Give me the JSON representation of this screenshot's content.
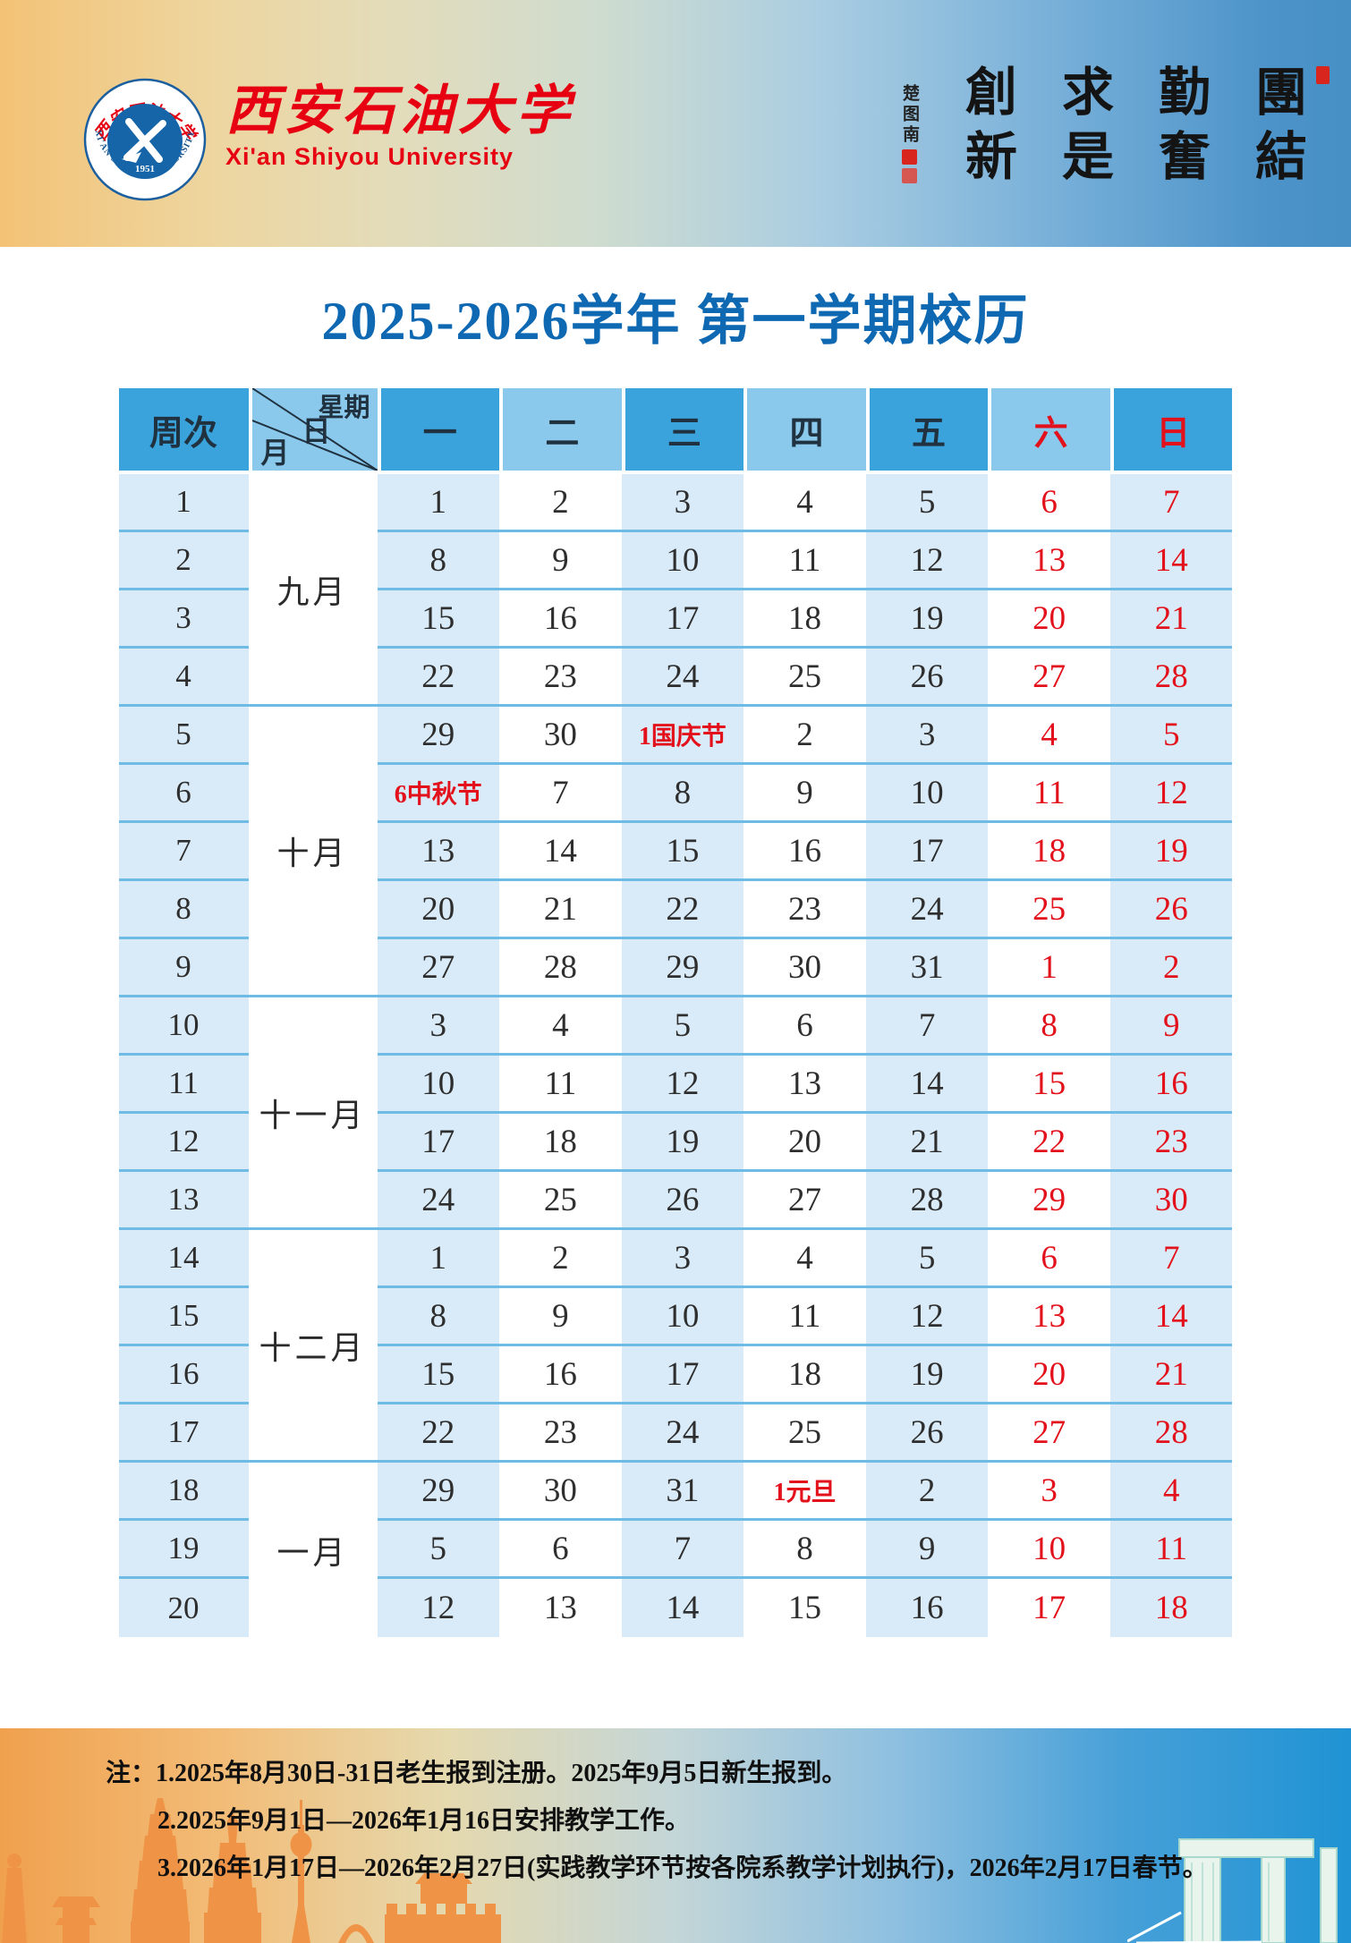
{
  "brand": {
    "name_zh": "西安石油大学",
    "name_en": "Xi'an Shiyou University",
    "logo_ring_zh": "西安石油大学",
    "logo_ring_en": "XI'AN SHIYOU UNIVERSITY",
    "logo_year": "1951"
  },
  "motto": {
    "columns_left_to_right": [
      "創新",
      "求是",
      "勤奮",
      "團結"
    ],
    "reading_order": "團結 勤奮 求是 創新",
    "signature": "楚图南"
  },
  "title": "2025-2026学年 第一学期校历",
  "calendar": {
    "week_header": "周次",
    "corner": {
      "top": "星期",
      "mid": "日",
      "bottom": "月"
    },
    "weekdays": [
      {
        "label": "一",
        "red": false
      },
      {
        "label": "二",
        "red": false
      },
      {
        "label": "三",
        "red": false
      },
      {
        "label": "四",
        "red": false
      },
      {
        "label": "五",
        "red": false
      },
      {
        "label": "六",
        "red": true
      },
      {
        "label": "日",
        "red": true
      }
    ],
    "months": [
      {
        "label": "九月",
        "from": 1,
        "to": 4
      },
      {
        "label": "十月",
        "from": 5,
        "to": 9
      },
      {
        "label": "十一月",
        "from": 10,
        "to": 13
      },
      {
        "label": "十二月",
        "from": 14,
        "to": 17
      },
      {
        "label": "一月",
        "from": 18,
        "to": 20
      }
    ],
    "weeks": [
      {
        "no": "1",
        "days": [
          {
            "t": "1"
          },
          {
            "t": "2"
          },
          {
            "t": "3"
          },
          {
            "t": "4"
          },
          {
            "t": "5"
          },
          {
            "t": "6",
            "red": true
          },
          {
            "t": "7",
            "red": true
          }
        ]
      },
      {
        "no": "2",
        "days": [
          {
            "t": "8"
          },
          {
            "t": "9"
          },
          {
            "t": "10"
          },
          {
            "t": "11"
          },
          {
            "t": "12"
          },
          {
            "t": "13",
            "red": true
          },
          {
            "t": "14",
            "red": true
          }
        ]
      },
      {
        "no": "3",
        "days": [
          {
            "t": "15"
          },
          {
            "t": "16"
          },
          {
            "t": "17"
          },
          {
            "t": "18"
          },
          {
            "t": "19"
          },
          {
            "t": "20",
            "red": true
          },
          {
            "t": "21",
            "red": true
          }
        ]
      },
      {
        "no": "4",
        "days": [
          {
            "t": "22"
          },
          {
            "t": "23"
          },
          {
            "t": "24"
          },
          {
            "t": "25"
          },
          {
            "t": "26"
          },
          {
            "t": "27",
            "red": true
          },
          {
            "t": "28",
            "red": true
          }
        ]
      },
      {
        "no": "5",
        "days": [
          {
            "t": "29"
          },
          {
            "t": "30"
          },
          {
            "t": "1国庆节",
            "red": true,
            "holiday": true
          },
          {
            "t": "2"
          },
          {
            "t": "3"
          },
          {
            "t": "4",
            "red": true
          },
          {
            "t": "5",
            "red": true
          }
        ]
      },
      {
        "no": "6",
        "days": [
          {
            "t": "6中秋节",
            "red": true,
            "holiday": true
          },
          {
            "t": "7"
          },
          {
            "t": "8"
          },
          {
            "t": "9"
          },
          {
            "t": "10"
          },
          {
            "t": "11",
            "red": true
          },
          {
            "t": "12",
            "red": true
          }
        ]
      },
      {
        "no": "7",
        "days": [
          {
            "t": "13"
          },
          {
            "t": "14"
          },
          {
            "t": "15"
          },
          {
            "t": "16"
          },
          {
            "t": "17"
          },
          {
            "t": "18",
            "red": true
          },
          {
            "t": "19",
            "red": true
          }
        ]
      },
      {
        "no": "8",
        "days": [
          {
            "t": "20"
          },
          {
            "t": "21"
          },
          {
            "t": "22"
          },
          {
            "t": "23"
          },
          {
            "t": "24"
          },
          {
            "t": "25",
            "red": true
          },
          {
            "t": "26",
            "red": true
          }
        ]
      },
      {
        "no": "9",
        "days": [
          {
            "t": "27"
          },
          {
            "t": "28"
          },
          {
            "t": "29"
          },
          {
            "t": "30"
          },
          {
            "t": "31"
          },
          {
            "t": "1",
            "red": true
          },
          {
            "t": "2",
            "red": true
          }
        ]
      },
      {
        "no": "10",
        "days": [
          {
            "t": "3"
          },
          {
            "t": "4"
          },
          {
            "t": "5"
          },
          {
            "t": "6"
          },
          {
            "t": "7"
          },
          {
            "t": "8",
            "red": true
          },
          {
            "t": "9",
            "red": true
          }
        ]
      },
      {
        "no": "11",
        "days": [
          {
            "t": "10"
          },
          {
            "t": "11"
          },
          {
            "t": "12"
          },
          {
            "t": "13"
          },
          {
            "t": "14"
          },
          {
            "t": "15",
            "red": true
          },
          {
            "t": "16",
            "red": true
          }
        ]
      },
      {
        "no": "12",
        "days": [
          {
            "t": "17"
          },
          {
            "t": "18"
          },
          {
            "t": "19"
          },
          {
            "t": "20"
          },
          {
            "t": "21"
          },
          {
            "t": "22",
            "red": true
          },
          {
            "t": "23",
            "red": true
          }
        ]
      },
      {
        "no": "13",
        "days": [
          {
            "t": "24"
          },
          {
            "t": "25"
          },
          {
            "t": "26"
          },
          {
            "t": "27"
          },
          {
            "t": "28"
          },
          {
            "t": "29",
            "red": true
          },
          {
            "t": "30",
            "red": true
          }
        ]
      },
      {
        "no": "14",
        "days": [
          {
            "t": "1"
          },
          {
            "t": "2"
          },
          {
            "t": "3"
          },
          {
            "t": "4"
          },
          {
            "t": "5"
          },
          {
            "t": "6",
            "red": true
          },
          {
            "t": "7",
            "red": true
          }
        ]
      },
      {
        "no": "15",
        "days": [
          {
            "t": "8"
          },
          {
            "t": "9"
          },
          {
            "t": "10"
          },
          {
            "t": "11"
          },
          {
            "t": "12"
          },
          {
            "t": "13",
            "red": true
          },
          {
            "t": "14",
            "red": true
          }
        ]
      },
      {
        "no": "16",
        "days": [
          {
            "t": "15"
          },
          {
            "t": "16"
          },
          {
            "t": "17"
          },
          {
            "t": "18"
          },
          {
            "t": "19"
          },
          {
            "t": "20",
            "red": true
          },
          {
            "t": "21",
            "red": true
          }
        ]
      },
      {
        "no": "17",
        "days": [
          {
            "t": "22"
          },
          {
            "t": "23"
          },
          {
            "t": "24"
          },
          {
            "t": "25"
          },
          {
            "t": "26"
          },
          {
            "t": "27",
            "red": true
          },
          {
            "t": "28",
            "red": true
          }
        ]
      },
      {
        "no": "18",
        "days": [
          {
            "t": "29"
          },
          {
            "t": "30"
          },
          {
            "t": "31"
          },
          {
            "t": "1元旦",
            "red": true,
            "holiday": true
          },
          {
            "t": "2"
          },
          {
            "t": "3",
            "red": true
          },
          {
            "t": "4",
            "red": true
          }
        ]
      },
      {
        "no": "19",
        "days": [
          {
            "t": "5"
          },
          {
            "t": "6"
          },
          {
            "t": "7"
          },
          {
            "t": "8"
          },
          {
            "t": "9"
          },
          {
            "t": "10",
            "red": true
          },
          {
            "t": "11",
            "red": true
          }
        ]
      },
      {
        "no": "20",
        "days": [
          {
            "t": "12"
          },
          {
            "t": "13"
          },
          {
            "t": "14"
          },
          {
            "t": "15"
          },
          {
            "t": "16"
          },
          {
            "t": "17",
            "red": true
          },
          {
            "t": "18",
            "red": true
          }
        ]
      }
    ]
  },
  "notes": {
    "prefix": "注：",
    "lines": [
      "1.2025年8月30日-31日老生报到注册。2025年9月5日新生报到。",
      "2.2025年9月1日—2026年1月16日安排教学工作。",
      "3.2026年1月17日—2026年2月27日(实践教学环节按各院系教学计划执行)，2026年2月17日春节。"
    ]
  },
  "colors": {
    "accent_red": "#e60012",
    "title_blue": "#0e68b2",
    "header_dark_blue": "#3aa3dc",
    "header_light_blue": "#8ac8ec",
    "cell_light_blue": "#d9ebf8",
    "row_line_blue": "#6ebce5",
    "weekend_red": "#e3111b"
  }
}
